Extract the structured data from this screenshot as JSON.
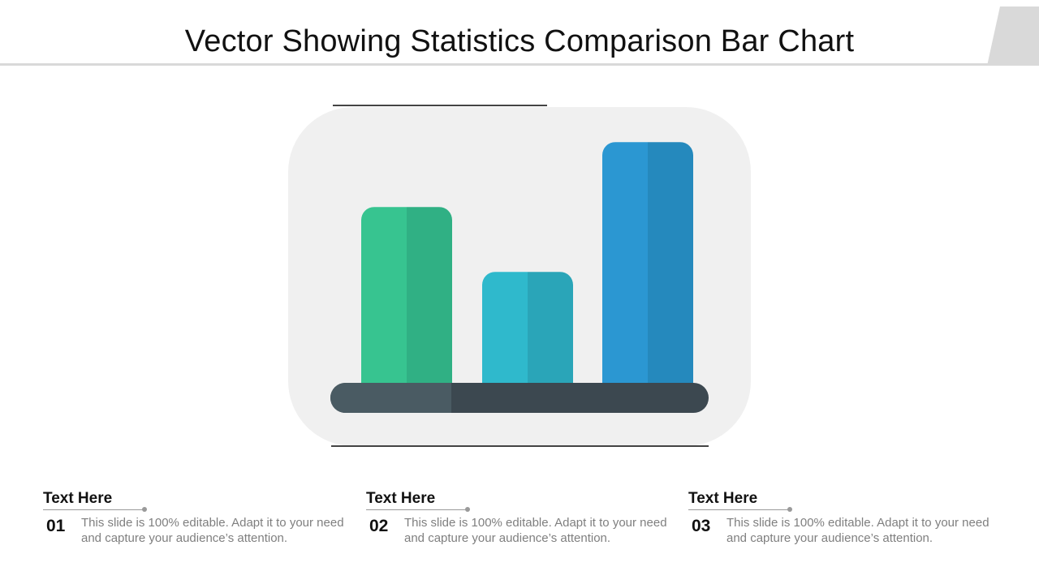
{
  "slide": {
    "title": "Vector Showing Statistics Comparison Bar Chart"
  },
  "icon": {
    "name": "bar-chart-icon",
    "bars": [
      {
        "level": 0.69,
        "color_light": "#37c490",
        "color_dark": "#30b084"
      },
      {
        "level": 0.44,
        "color_light": "#2fb9cc",
        "color_dark": "#2aa5b8"
      },
      {
        "level": 0.94,
        "color_light": "#2b97d2",
        "color_dark": "#2589bd"
      }
    ],
    "base_color_light": "#4a5b63",
    "base_color_dark": "#3c4850",
    "backdrop_color": "#f0f0f0"
  },
  "blocks": [
    {
      "heading": "Text Here",
      "number": "01",
      "text": "This slide is 100% editable. Adapt it to your need and capture your audience’s attention."
    },
    {
      "heading": "Text Here",
      "number": "02",
      "text": "This slide is 100% editable. Adapt it to your need and capture your audience’s attention."
    },
    {
      "heading": "Text Here",
      "number": "03",
      "text": "This slide is 100% editable. Adapt it to your need and capture your audience’s attention."
    }
  ]
}
